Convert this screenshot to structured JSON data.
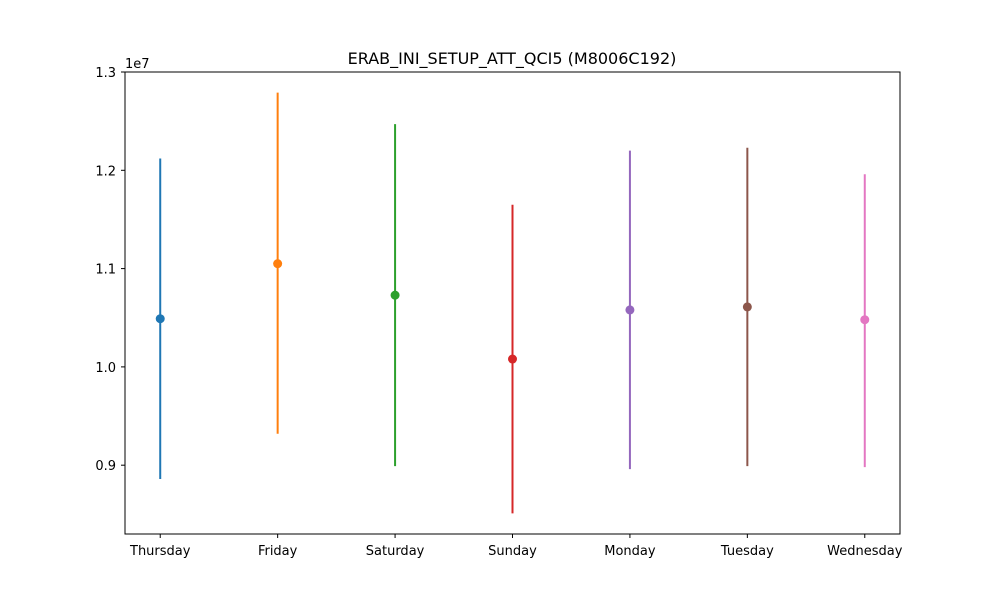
{
  "chart_data": {
    "type": "scatter",
    "title": "ERAB_INI_SETUP_ATT_QCI5 (M8006C192)",
    "xlabel": "",
    "ylabel": "",
    "y_offset_label": "1e7",
    "ylim": [
      0.83,
      1.3
    ],
    "yticks": [
      0.9,
      1.0,
      1.1,
      1.2,
      1.3
    ],
    "ytick_labels": [
      "0.9",
      "1.0",
      "1.1",
      "1.2",
      "1.3"
    ],
    "grid": false,
    "categories": [
      "Thursday",
      "Friday",
      "Saturday",
      "Sunday",
      "Monday",
      "Tuesday",
      "Wednesday"
    ],
    "series": [
      {
        "category": "Thursday",
        "mean": 1.049,
        "low": 0.886,
        "high": 1.212,
        "color": "#1f77b4"
      },
      {
        "category": "Friday",
        "mean": 1.105,
        "low": 0.932,
        "high": 1.279,
        "color": "#ff7f0e"
      },
      {
        "category": "Saturday",
        "mean": 1.073,
        "low": 0.899,
        "high": 1.247,
        "color": "#2ca02c"
      },
      {
        "category": "Sunday",
        "mean": 1.008,
        "low": 0.851,
        "high": 1.165,
        "color": "#d62728"
      },
      {
        "category": "Monday",
        "mean": 1.058,
        "low": 0.896,
        "high": 1.22,
        "color": "#9467bd"
      },
      {
        "category": "Tuesday",
        "mean": 1.061,
        "low": 0.899,
        "high": 1.223,
        "color": "#8c564b"
      },
      {
        "category": "Wednesday",
        "mean": 1.048,
        "low": 0.898,
        "high": 1.196,
        "color": "#e377c2"
      }
    ]
  }
}
